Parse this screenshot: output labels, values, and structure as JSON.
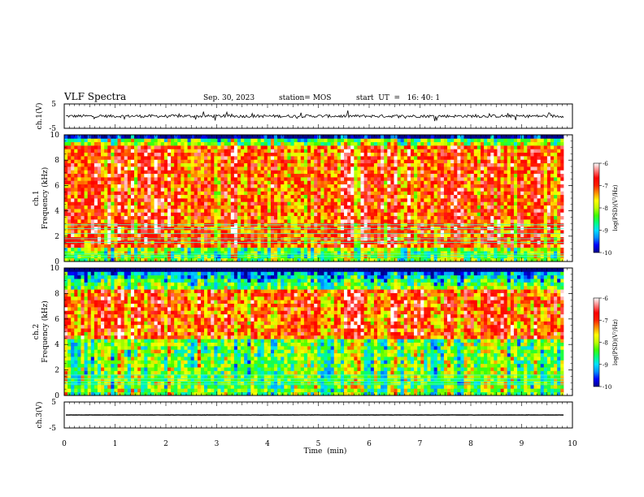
{
  "header": {
    "title": "VLF Spectra",
    "date": "Sep. 30, 2023",
    "station": "station= MOS",
    "start_ut": "start  UT  =   16: 40: 1"
  },
  "colorbar": {
    "label": "log(PSD)(V²/Hz)",
    "ticks": [
      "-6",
      "-7",
      "-8",
      "-9",
      "-10"
    ],
    "stops": [
      "#00008b",
      "#0000ff",
      "#0090ff",
      "#00e0ff",
      "#00ff80",
      "#40ff00",
      "#c0ff00",
      "#ffff00",
      "#ff9000",
      "#ff2000",
      "#ff0000",
      "#ff8080",
      "#ffffff"
    ]
  },
  "chart_data": [
    {
      "type": "line",
      "name_label": "ch.1(V)",
      "ylim": [
        -5,
        5
      ],
      "yticks": [
        "5",
        "-5"
      ],
      "baseline": 0,
      "line_color": "#000000"
    },
    {
      "type": "heatmap",
      "ylabel": "ch.1\nFrequency (kHz)",
      "ylim": [
        0,
        10
      ],
      "yticks": [
        "10",
        "8",
        "6",
        "4",
        "2",
        "0"
      ],
      "color_range": [
        -10,
        -6
      ],
      "xlim": [
        0,
        10
      ],
      "intense_band_khz": [
        1,
        9.2
      ],
      "line_frequencies_khz": [
        0.4,
        0.6,
        1.5,
        1.8,
        2.2,
        2.6,
        2.9
      ]
    },
    {
      "type": "heatmap",
      "ylabel": "ch.2\nFrequency (kHz)",
      "ylim": [
        0,
        10
      ],
      "yticks": [
        "10",
        "8",
        "6",
        "4",
        "2",
        "0"
      ],
      "color_range": [
        -10,
        -6
      ],
      "xlim": [
        0,
        10
      ],
      "intense_band_khz": [
        4.5,
        8.3
      ],
      "line_frequencies_khz": [
        0.9,
        1.1,
        1.3,
        1.6
      ]
    },
    {
      "type": "line",
      "name_label": "ch.3(V)",
      "ylim": [
        -5,
        5
      ],
      "yticks": [
        "5",
        "-5"
      ],
      "baseline": 0,
      "line_color": "#000000"
    }
  ],
  "x_axis": {
    "label": "Time  (min)",
    "ticks": [
      "0",
      "1",
      "2",
      "3",
      "4",
      "5",
      "6",
      "7",
      "8",
      "9",
      "10"
    ],
    "xlim": [
      0,
      10
    ],
    "data_end_min": 9.83
  }
}
